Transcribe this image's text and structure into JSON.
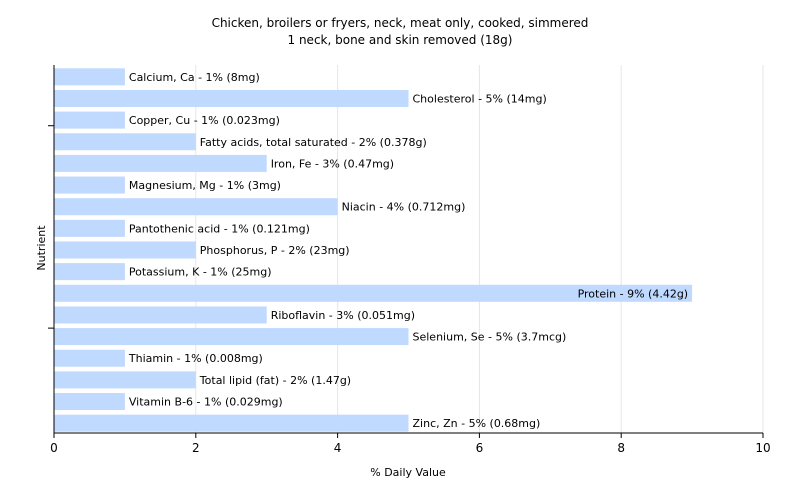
{
  "chart_data": {
    "type": "bar",
    "orientation": "horizontal",
    "title": "Chicken, broilers or fryers, neck, meat only, cooked, simmered",
    "subtitle": "1 neck, bone and skin removed (18g)",
    "xlabel": "% Daily Value",
    "ylabel": "Nutrient",
    "xlim": [
      0,
      10
    ],
    "xticks": [
      0,
      2,
      4,
      6,
      8,
      10
    ],
    "grid": true,
    "bar_color": "#bfd9ff",
    "categories": [
      "Calcium, Ca",
      "Cholesterol",
      "Copper, Cu",
      "Fatty acids, total saturated",
      "Iron, Fe",
      "Magnesium, Mg",
      "Niacin",
      "Pantothenic acid",
      "Phosphorus, P",
      "Potassium, K",
      "Protein",
      "Riboflavin",
      "Selenium, Se",
      "Thiamin",
      "Total lipid (fat)",
      "Vitamin B-6",
      "Zinc, Zn"
    ],
    "values": [
      1,
      5,
      1,
      2,
      3,
      1,
      4,
      1,
      2,
      1,
      9,
      3,
      5,
      1,
      2,
      1,
      5
    ],
    "labels": [
      "Calcium, Ca - 1% (8mg)",
      "Cholesterol - 5% (14mg)",
      "Copper, Cu - 1% (0.023mg)",
      "Fatty acids, total saturated - 2% (0.378g)",
      "Iron, Fe - 3% (0.47mg)",
      "Magnesium, Mg - 1% (3mg)",
      "Niacin - 4% (0.712mg)",
      "Pantothenic acid - 1% (0.121mg)",
      "Phosphorus, P - 2% (23mg)",
      "Potassium, K - 1% (25mg)",
      "Protein - 9% (4.42g)",
      "Riboflavin - 3% (0.051mg)",
      "Selenium, Se - 5% (3.7mcg)",
      "Thiamin - 1% (0.008mg)",
      "Total lipid (fat) - 2% (1.47g)",
      "Vitamin B-6 - 1% (0.029mg)",
      "Zinc, Zn - 5% (0.68mg)"
    ]
  }
}
